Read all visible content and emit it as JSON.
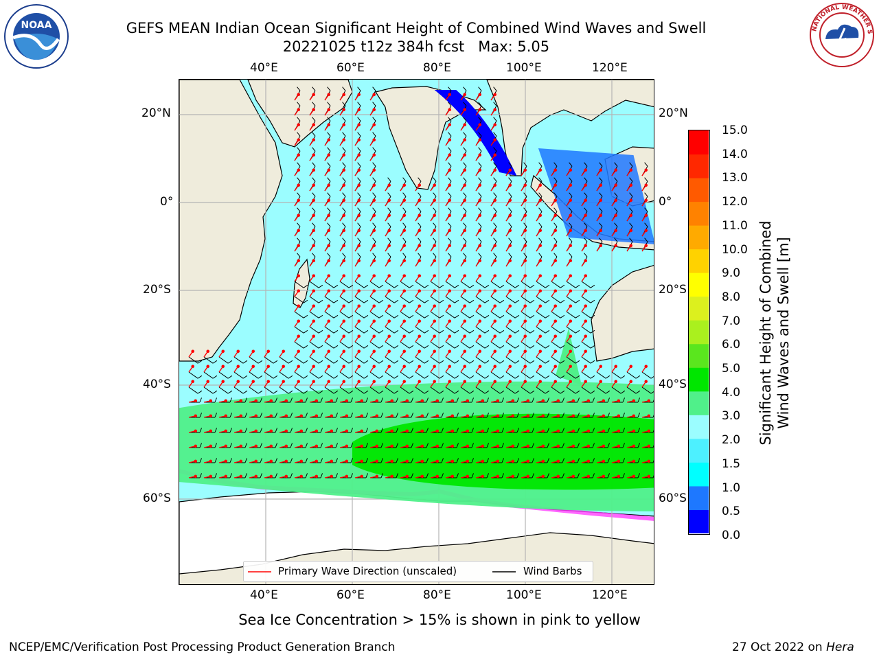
{
  "title_line1": "GEFS MEAN Indian Ocean Significant Height of Combined Wind Waves and Swell",
  "title_line2": "20221025 t12z 384h fcst   Max: 5.05",
  "logos": {
    "left": "NOAA",
    "right": "NATIONAL WEATHER SERVICE"
  },
  "axes": {
    "lon_ticks": [
      "40°E",
      "60°E",
      "80°E",
      "100°E",
      "120°E"
    ],
    "lat_ticks": [
      "20°N",
      "0°",
      "20°S",
      "40°S",
      "60°S"
    ]
  },
  "map": {
    "lon_range": [
      20,
      130
    ],
    "lat_range": [
      -74,
      28
    ],
    "grid": true,
    "land_color": "#efecdc",
    "ice_color": "#ffffff"
  },
  "legend": {
    "items": [
      {
        "label": "Primary Wave Direction (unscaled)",
        "color": "#ff0000"
      },
      {
        "label": "Wind Barbs",
        "color": "#000000"
      }
    ],
    "placement": "bottom-center"
  },
  "colorbar": {
    "label_line1": "Significant Height of Combined",
    "label_line2": "Wind Waves and Swell [m]",
    "ticks": [
      "15.0",
      "14.0",
      "13.0",
      "12.0",
      "11.0",
      "10.0",
      "9.0",
      "8.0",
      "7.0",
      "6.0",
      "5.0",
      "4.0",
      "3.0",
      "2.0",
      "1.5",
      "1.0",
      "0.5",
      "0.0"
    ],
    "bounds": [
      0,
      0.5,
      1,
      1.5,
      2,
      3,
      4,
      5,
      6,
      7,
      8,
      9,
      10,
      11,
      12,
      13,
      14,
      15
    ],
    "colors": [
      "#0000ff",
      "#1e78ff",
      "#00ffff",
      "#4df0ff",
      "#9bfdff",
      "#50f08a",
      "#00e600",
      "#5ae61e",
      "#aaf01e",
      "#dcf01e",
      "#ffff00",
      "#ffd200",
      "#ffaa00",
      "#ff8200",
      "#ff5a00",
      "#ff2800",
      "#ff0000"
    ]
  },
  "note": "Sea Ice Concentration > 15% is shown in pink to yellow",
  "footer_left": "NCEP/EMC/Verification Post Processing Product Generation Branch",
  "footer_right_prefix": "27 Oct 2022 on ",
  "footer_right_host": "Hera"
}
